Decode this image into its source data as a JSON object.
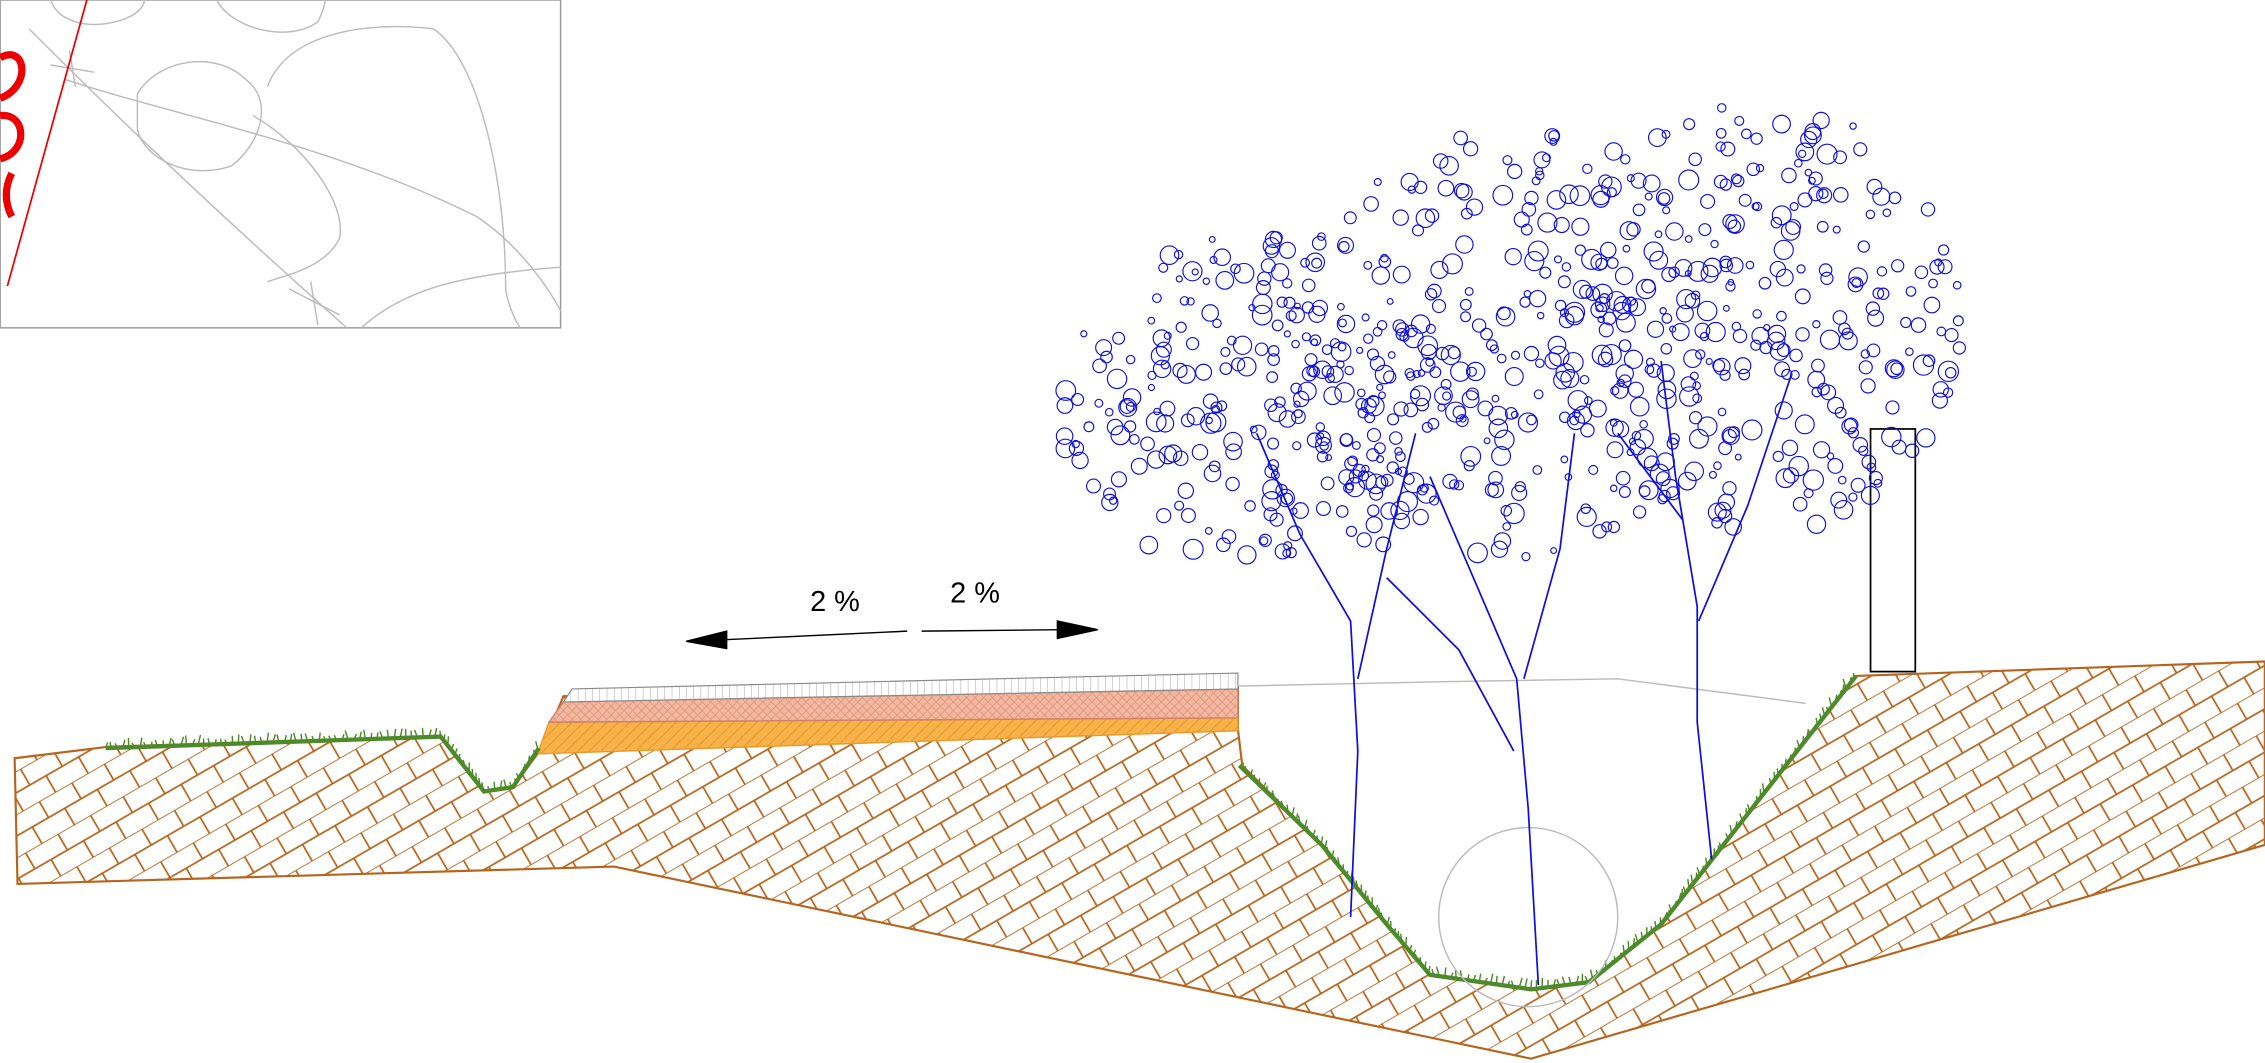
{
  "labels": {
    "slope_left": "2 %",
    "slope_right": "2 %"
  }
}
